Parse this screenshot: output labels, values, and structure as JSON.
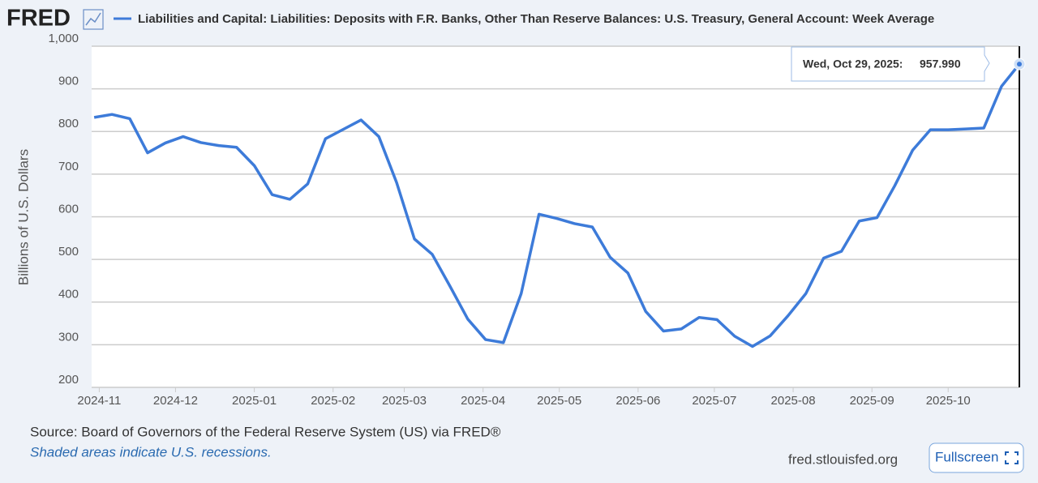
{
  "chart_data": {
    "type": "line",
    "logo": "FRED",
    "title": "Liabilities and Capital: Liabilities: Deposits with F.R. Banks, Other Than Reserve Balances: U.S. Treasury, General Account: Week Average",
    "y_label": "Billions of U.S. Dollars",
    "x": [
      "2024-10-30",
      "2024-11-06",
      "2024-11-13",
      "2024-11-20",
      "2024-11-27",
      "2024-12-04",
      "2024-12-11",
      "2024-12-18",
      "2024-12-25",
      "2025-01-01",
      "2025-01-08",
      "2025-01-15",
      "2025-01-22",
      "2025-01-29",
      "2025-02-05",
      "2025-02-12",
      "2025-02-19",
      "2025-02-26",
      "2025-03-05",
      "2025-03-12",
      "2025-03-19",
      "2025-03-26",
      "2025-04-02",
      "2025-04-09",
      "2025-04-16",
      "2025-04-23",
      "2025-04-30",
      "2025-05-07",
      "2025-05-14",
      "2025-05-21",
      "2025-05-28",
      "2025-06-04",
      "2025-06-11",
      "2025-06-18",
      "2025-06-25",
      "2025-07-02",
      "2025-07-09",
      "2025-07-16",
      "2025-07-23",
      "2025-07-30",
      "2025-08-06",
      "2025-08-13",
      "2025-08-20",
      "2025-08-27",
      "2025-09-03",
      "2025-09-10",
      "2025-09-17",
      "2025-09-24",
      "2025-10-01",
      "2025-10-08",
      "2025-10-15",
      "2025-10-22",
      "2025-10-29"
    ],
    "series": [
      {
        "name": "Liabilities and Capital: Liabilities: Deposits with F.R. Banks, Other Than Reserve Balances: U.S. Treasury, General Account: Week Average",
        "color": "#3d7bd9",
        "values": [
          833,
          840,
          830,
          750,
          773,
          788,
          774,
          767,
          763,
          720,
          652,
          641,
          677,
          783,
          805,
          827,
          788,
          680,
          548,
          512,
          437,
          360,
          312,
          305,
          420,
          606,
          596,
          584,
          576,
          505,
          468,
          378,
          332,
          337,
          364,
          359,
          320,
          296,
          321,
          368,
          420,
          503,
          519,
          590,
          598,
          673,
          756,
          804,
          804,
          806,
          808,
          906,
          957.99
        ]
      }
    ],
    "xlim": [
      "2024-10-29",
      "2025-10-29"
    ],
    "xticks": [
      {
        "value": "2024-11-01",
        "label": "2024-11"
      },
      {
        "value": "2024-12-01",
        "label": "2024-12"
      },
      {
        "value": "2025-01-01",
        "label": "2025-01"
      },
      {
        "value": "2025-02-01",
        "label": "2025-02"
      },
      {
        "value": "2025-03-01",
        "label": "2025-03"
      },
      {
        "value": "2025-04-01",
        "label": "2025-04"
      },
      {
        "value": "2025-05-01",
        "label": "2025-05"
      },
      {
        "value": "2025-06-01",
        "label": "2025-06"
      },
      {
        "value": "2025-07-01",
        "label": "2025-07"
      },
      {
        "value": "2025-08-01",
        "label": "2025-08"
      },
      {
        "value": "2025-09-01",
        "label": "2025-09"
      },
      {
        "value": "2025-10-01",
        "label": "2025-10"
      }
    ],
    "ylim": [
      200,
      1000
    ],
    "yticks": [
      200,
      300,
      400,
      500,
      600,
      700,
      800,
      900,
      {
        "value": 1000,
        "label": "1,000"
      }
    ],
    "grid": true,
    "tooltip": {
      "date": "Wed, Oct 29, 2025:",
      "value_label": "957.990"
    },
    "source": "Source: Board of Governors of the Federal Reserve System (US) via FRED®",
    "note": "Shaded areas indicate U.S. recessions.",
    "site": "fred.stlouisfed.org",
    "button": "Fullscreen"
  }
}
